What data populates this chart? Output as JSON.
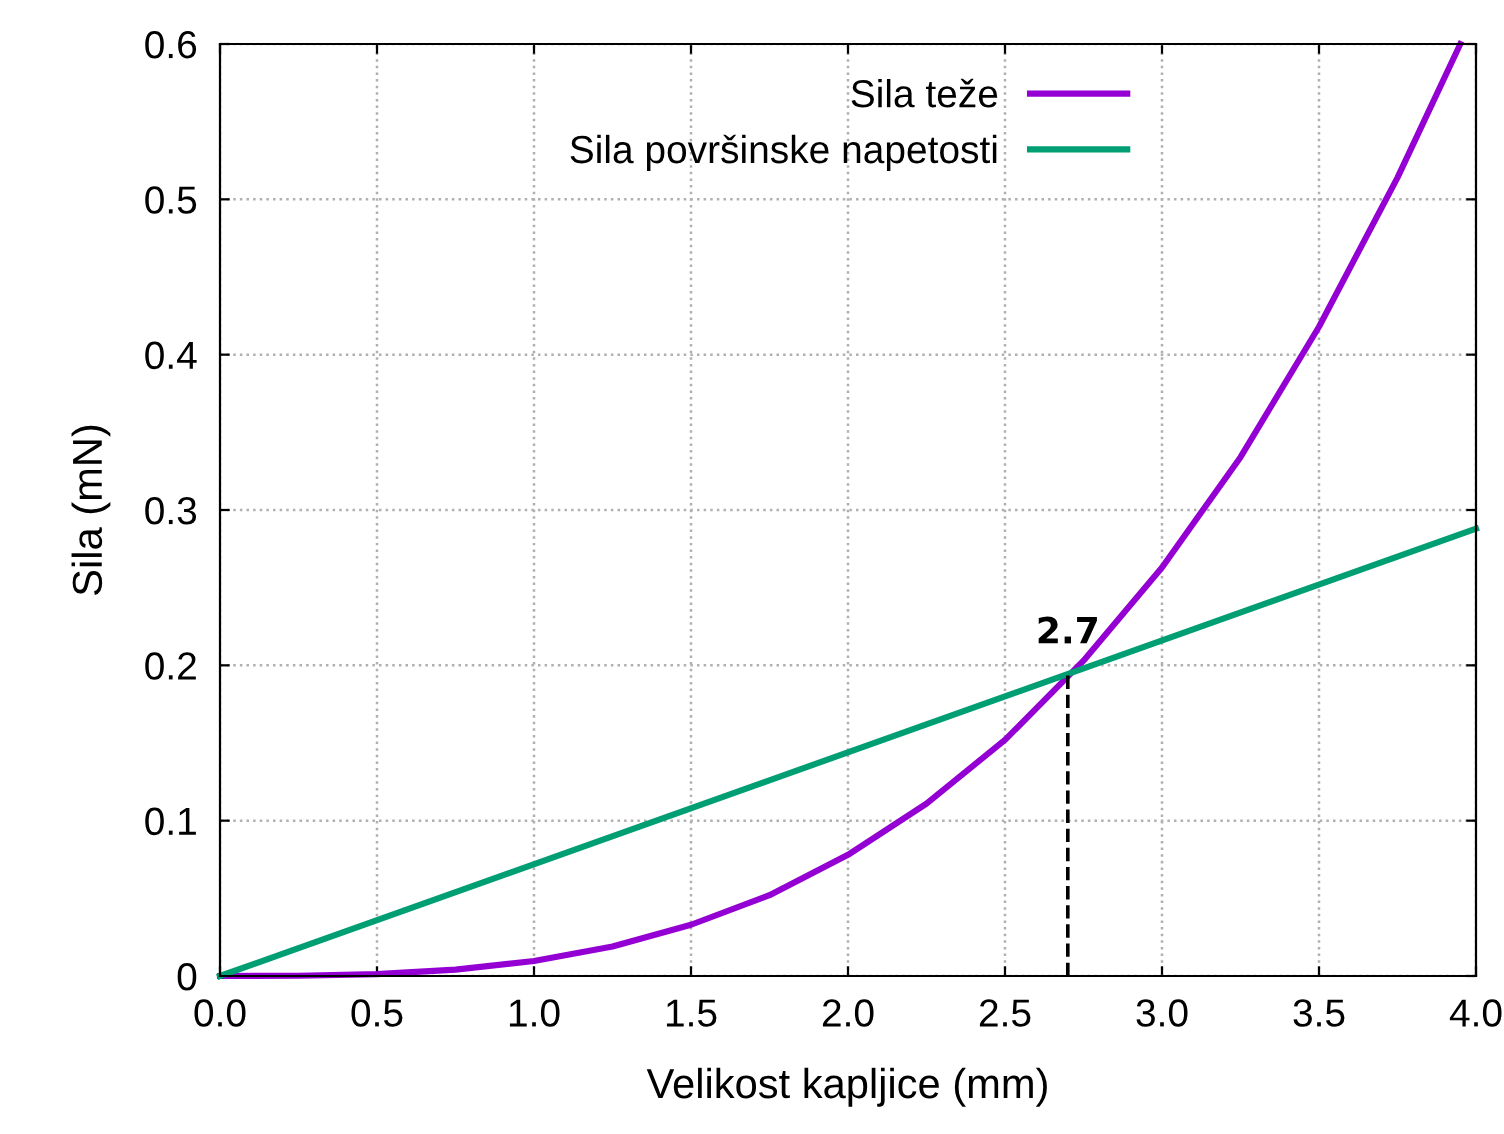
{
  "chart_data": {
    "type": "line",
    "xlabel": "Velikost kapljice (mm)",
    "ylabel": "Sila (mN)",
    "xlim": [
      0,
      4
    ],
    "ylim": [
      0,
      0.6
    ],
    "xticks": [
      {
        "value": 0,
        "label": "0.0"
      },
      {
        "value": 0.5,
        "label": "0.5"
      },
      {
        "value": 1,
        "label": "1.0"
      },
      {
        "value": 1.5,
        "label": "1.5"
      },
      {
        "value": 2,
        "label": "2.0"
      },
      {
        "value": 2.5,
        "label": "2.5"
      },
      {
        "value": 3,
        "label": "3.0"
      },
      {
        "value": 3.5,
        "label": "3.5"
      },
      {
        "value": 4,
        "label": "4.0"
      }
    ],
    "yticks": [
      0,
      0.1,
      0.2,
      0.3,
      0.4,
      0.5,
      0.6
    ],
    "grid": true,
    "legend": "top",
    "line_style": "solid",
    "marker": "none",
    "series": [
      {
        "name": "Sila teže",
        "color": "#9400d3",
        "x": [
          0,
          0.25,
          0.5,
          0.75,
          1,
          1.25,
          1.5,
          1.75,
          2,
          2.25,
          2.5,
          2.75,
          3,
          3.25,
          3.5,
          3.75,
          3.95
        ],
        "values": [
          0,
          0.0002,
          0.0012,
          0.0041,
          0.0097,
          0.019,
          0.033,
          0.052,
          0.078,
          0.111,
          0.152,
          0.203,
          0.263,
          0.334,
          0.418,
          0.514,
          0.6
        ]
      },
      {
        "name": "Sila površinske napetosti",
        "color": "#009e73",
        "x": [
          0,
          4
        ],
        "values": [
          0,
          0.288
        ]
      },
      {
        "color": "#000000",
        "x": [
          2.7,
          2.7
        ],
        "values": [
          0,
          0.195
        ],
        "line_style": "dashed"
      }
    ],
    "annotations": [
      {
        "text": "2.7",
        "x": 2.7,
        "y": 0.195
      }
    ]
  }
}
